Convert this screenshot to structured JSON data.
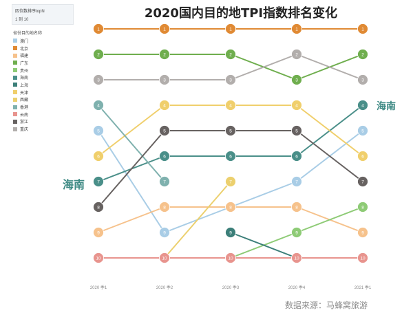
{
  "filter": {
    "title": "四位数排序topN",
    "range": "1 到 10"
  },
  "legend_title": "省份目的地名称",
  "annotations": {
    "left": "海南",
    "right": "海南"
  },
  "source": "数据来源：马蜂窝旅游",
  "chart_data": {
    "type": "line",
    "title": "2020国内目的地TPI指数排名变化",
    "categories": [
      "2020 季1",
      "2020 季2",
      "2020 季3",
      "2020 季4",
      "2021 季1"
    ],
    "y_reversed": true,
    "ylim": [
      1,
      10
    ],
    "series": [
      {
        "name": "澳门",
        "color": "#a9cde6",
        "values": [
          5,
          9,
          8,
          7,
          5
        ]
      },
      {
        "name": "北京",
        "color": "#e08a34",
        "values": [
          1,
          1,
          1,
          1,
          1
        ]
      },
      {
        "name": "福建",
        "color": "#f6c28c",
        "values": [
          9,
          8,
          8,
          8,
          9
        ]
      },
      {
        "name": "广东",
        "color": "#6fae4e",
        "values": [
          2,
          2,
          2,
          3,
          2
        ]
      },
      {
        "name": "贵州",
        "color": "#8ecb76",
        "values": [
          null,
          null,
          10,
          9,
          8
        ]
      },
      {
        "name": "海南",
        "color": "#4a8f89",
        "values": [
          7,
          6,
          6,
          6,
          4
        ]
      },
      {
        "name": "上海",
        "color": "#3c7f79",
        "values": [
          null,
          null,
          9,
          10,
          null
        ]
      },
      {
        "name": "天津",
        "color": "#f0cf6c",
        "values": [
          6,
          4,
          4,
          4,
          6
        ]
      },
      {
        "name": "西藏",
        "color": "#ecd06e",
        "values": [
          null,
          10,
          7,
          null,
          null
        ]
      },
      {
        "name": "香港",
        "color": "#7fb1ae",
        "values": [
          4,
          7,
          null,
          null,
          null
        ]
      },
      {
        "name": "云南",
        "color": "#e8948e",
        "values": [
          10,
          10,
          10,
          10,
          10
        ]
      },
      {
        "name": "浙江",
        "color": "#676261",
        "values": [
          8,
          5,
          5,
          5,
          7
        ]
      },
      {
        "name": "重庆",
        "color": "#b2aeac",
        "values": [
          3,
          3,
          3,
          2,
          3
        ]
      }
    ]
  }
}
